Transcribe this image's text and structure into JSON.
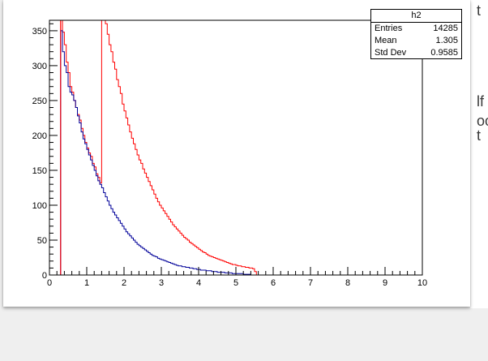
{
  "background_right": {
    "line1": "t",
    "line2": "lf",
    "line3": "oo",
    "line4": "t"
  },
  "stats": {
    "title": "h2",
    "rows": [
      {
        "label": "Entries",
        "value": "14285"
      },
      {
        "label": "Mean",
        "value": "1.305"
      },
      {
        "label": "Std Dev",
        "value": "0.9585"
      }
    ]
  },
  "colors": {
    "series_red": "#ff0000",
    "series_blue": "#000099",
    "frame": "#000000"
  },
  "chart_data": {
    "type": "histogram",
    "title": "",
    "xlabel": "",
    "ylabel": "",
    "xlim": [
      0,
      10
    ],
    "ylim": [
      0,
      365
    ],
    "x_ticks": [
      0,
      1,
      2,
      3,
      4,
      5,
      6,
      7,
      8,
      9,
      10
    ],
    "y_ticks": [
      0,
      50,
      100,
      150,
      200,
      250,
      300,
      350
    ],
    "grid": false,
    "vertical_line_x": 0.3,
    "series": [
      {
        "color": "#ff0000",
        "x_start": 0.3,
        "bin_width": 0.05,
        "values": [
          370,
          348,
          330,
          305,
          290,
          270,
          262,
          250,
          240,
          230,
          222,
          210,
          200,
          190,
          182,
          175,
          170,
          160,
          155,
          145,
          140,
          132,
          380,
          375,
          360,
          345,
          330,
          320,
          305,
          295,
          280,
          270,
          260,
          245,
          235,
          225,
          215,
          205,
          196,
          188,
          180,
          172,
          165,
          160,
          152,
          146,
          140,
          134,
          128,
          122,
          116,
          110,
          105,
          100,
          96,
          92,
          88,
          84,
          80,
          76,
          72,
          69,
          66,
          63,
          60,
          57,
          54,
          52,
          50,
          47,
          45,
          43,
          41,
          39,
          37,
          35,
          33,
          32,
          30,
          28,
          27,
          26,
          25,
          24,
          23,
          22,
          21,
          20,
          19,
          18,
          17,
          16,
          15,
          15,
          14,
          13,
          13,
          12,
          12,
          11,
          11,
          10,
          10,
          9,
          5
        ]
      },
      {
        "color": "#000099",
        "x_start": 0.3,
        "bin_width": 0.05,
        "values": [
          350,
          320,
          300,
          290,
          270,
          262,
          258,
          250,
          240,
          228,
          218,
          205,
          195,
          188,
          180,
          172,
          165,
          157,
          150,
          142,
          135,
          130,
          125,
          118,
          112,
          106,
          100,
          95,
          90,
          86,
          82,
          78,
          74,
          70,
          66,
          62,
          59,
          56,
          53,
          50,
          47,
          44,
          42,
          40,
          38,
          36,
          34,
          32,
          30,
          28,
          27,
          26,
          24,
          23,
          22,
          21,
          20,
          19,
          18,
          17,
          16,
          15,
          14,
          13,
          13,
          12,
          12,
          11,
          11,
          10,
          10,
          9,
          9,
          8,
          8,
          7,
          7,
          7,
          6,
          6,
          6,
          5,
          5,
          5,
          4,
          4,
          4,
          4,
          3,
          3,
          3,
          3,
          2,
          2,
          2,
          2,
          2,
          2,
          1,
          1,
          1,
          1,
          0,
          0,
          0,
          0,
          0,
          0,
          0,
          0,
          0
        ]
      }
    ]
  }
}
